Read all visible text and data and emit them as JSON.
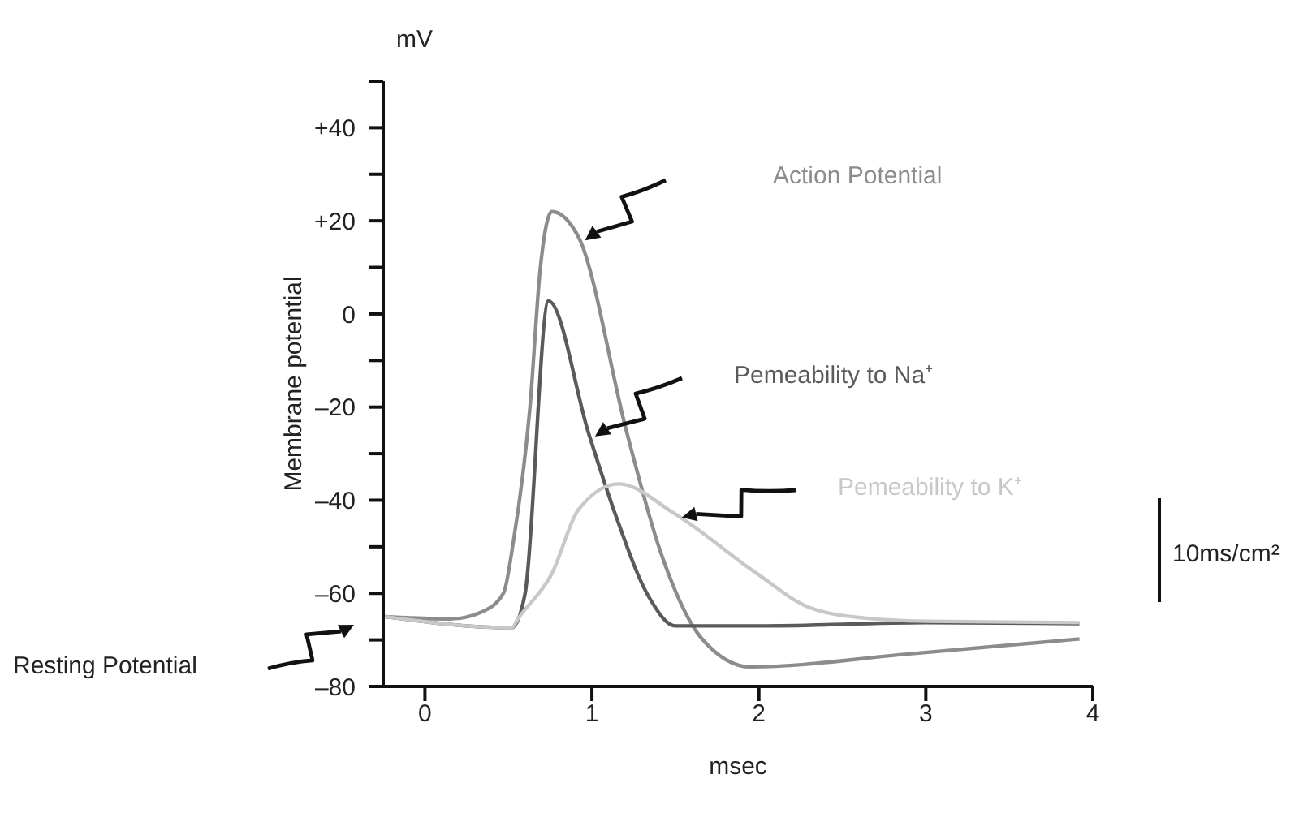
{
  "chart_data": {
    "type": "line",
    "xlabel": "msec",
    "ylabel": "Membrane potential",
    "xlim": [
      -0.25,
      4
    ],
    "xticks": [
      0,
      1,
      2,
      3,
      4
    ],
    "ylim": [
      -80,
      50
    ],
    "yticks": [
      {
        "value": -80,
        "label": "–80"
      },
      {
        "value": -70,
        "label": null
      },
      {
        "value": -60,
        "label": "–60"
      },
      {
        "value": -50,
        "label": null
      },
      {
        "value": -40,
        "label": "–40"
      },
      {
        "value": -30,
        "label": null
      },
      {
        "value": -20,
        "label": "–20"
      },
      {
        "value": -10,
        "label": null
      },
      0,
      {
        "value": 10,
        "label": null
      },
      {
        "value": 20,
        "label": "+20"
      },
      {
        "value": 30,
        "label": null
      },
      {
        "value": 40,
        "label": "+40"
      },
      {
        "value": 50,
        "label": null
      }
    ],
    "grid": false,
    "legend": false,
    "marker": "none",
    "line_style": "solid",
    "series": [
      {
        "name": "Action Potential",
        "color": "#8c8c8c",
        "x": [
          -0.24,
          0.15,
          0.34,
          0.47,
          0.53,
          0.63,
          0.69,
          0.76,
          0.92,
          1.21,
          1.41,
          1.66,
          1.95,
          2.9,
          3.92
        ],
        "values": [
          -65,
          -65.5,
          -64,
          -60,
          -48.8,
          -19.6,
          9.5,
          22,
          16.5,
          -25.6,
          -51,
          -69.8,
          -75.8,
          -73,
          -69.8
        ]
      },
      {
        "name": "Pemeability to Na⁺",
        "color": "#5a5a5a",
        "x": [
          -0.24,
          0.52,
          0.6,
          0.74,
          0.98,
          1.14,
          1.34,
          1.5,
          2,
          3,
          3.92
        ],
        "values": [
          -65,
          -67.4,
          -60,
          2.8,
          -25.6,
          -43,
          -60.7,
          -67,
          -67,
          -66.3,
          -66.5
        ]
      },
      {
        "name": "Pemeability to K⁺",
        "color": "#c8c8c8",
        "x": [
          -0.24,
          0.52,
          0.56,
          0.76,
          0.92,
          1.16,
          1.5,
          1.99,
          2.3,
          2.63,
          3,
          3.92
        ],
        "values": [
          -65,
          -67.4,
          -65.3,
          -55.8,
          -42,
          -36.5,
          -43,
          -55.8,
          -63,
          -65.3,
          -66,
          -66.3
        ]
      }
    ],
    "annotations": [
      "mV",
      "Resting Potential",
      "10ms/cm²"
    ]
  }
}
